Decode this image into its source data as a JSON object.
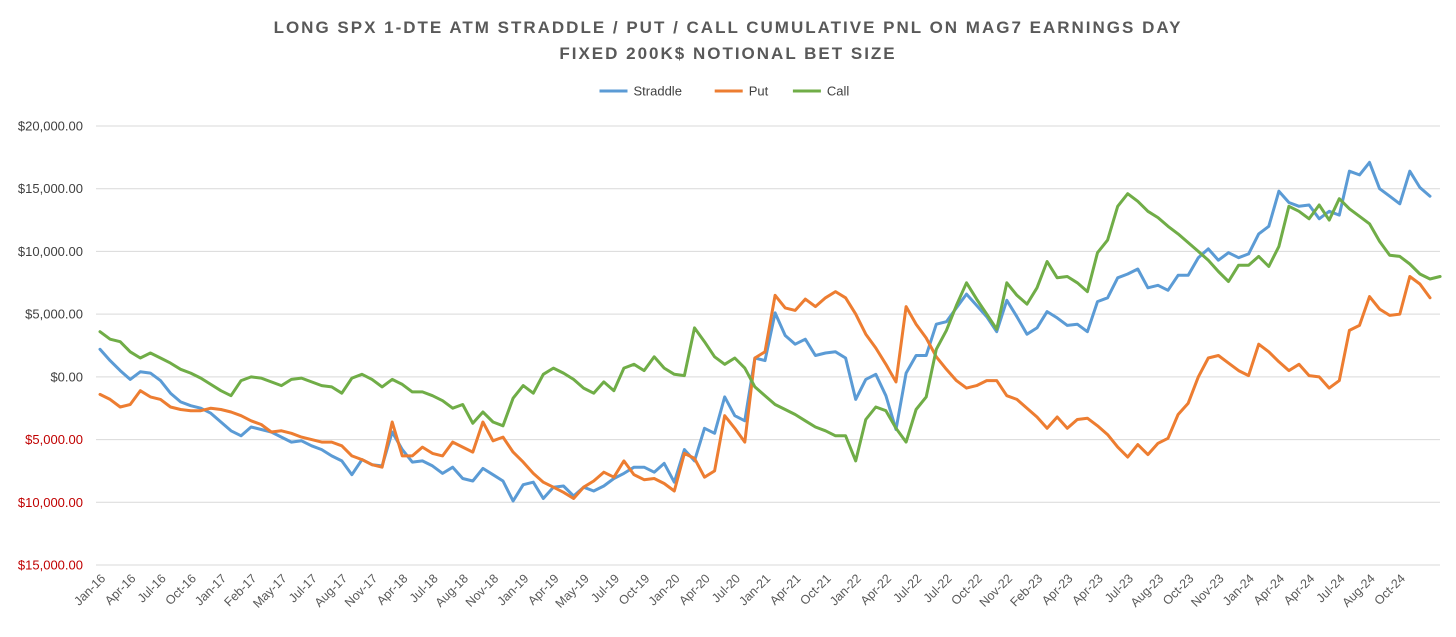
{
  "chart_data": {
    "type": "line",
    "title": "LONG SPX 1-DTE ATM STRADDLE / PUT / CALL CUMULATIVE PNL ON MAG7 EARNINGS DAY",
    "subtitle": "FIXED 200K$ NOTIONAL BET SIZE",
    "legend_position": "top-center",
    "grid": true,
    "ylim": [
      -15000,
      20000
    ],
    "yticks": [
      {
        "value": 20000,
        "label": "$20,000.00",
        "color": "#404040"
      },
      {
        "value": 15000,
        "label": "$15,000.00",
        "color": "#404040"
      },
      {
        "value": 10000,
        "label": "$10,000.00",
        "color": "#404040"
      },
      {
        "value": 5000,
        "label": "$5,000.00",
        "color": "#404040"
      },
      {
        "value": 0,
        "label": "$0.00",
        "color": "#404040"
      },
      {
        "value": -5000,
        "label": "$5,000.00",
        "color": "#c00000"
      },
      {
        "value": -10000,
        "label": "$10,000.00",
        "color": "#c00000"
      },
      {
        "value": -15000,
        "label": "$15,000.00",
        "color": "#c00000"
      }
    ],
    "xtick_labels": [
      {
        "index": 0,
        "label": "Jan-16"
      },
      {
        "index": 3,
        "label": "Apr-16"
      },
      {
        "index": 6,
        "label": "Jul-16"
      },
      {
        "index": 9,
        "label": "Oct-16"
      },
      {
        "index": 12,
        "label": "Jan-17"
      },
      {
        "index": 15,
        "label": "Feb-17"
      },
      {
        "index": 18,
        "label": "May-17"
      },
      {
        "index": 21,
        "label": "Jul-17"
      },
      {
        "index": 24,
        "label": "Aug-17"
      },
      {
        "index": 27,
        "label": "Nov-17"
      },
      {
        "index": 30,
        "label": "Apr-18"
      },
      {
        "index": 33,
        "label": "Jul-18"
      },
      {
        "index": 36,
        "label": "Aug-18"
      },
      {
        "index": 39,
        "label": "Nov-18"
      },
      {
        "index": 42,
        "label": "Jan-19"
      },
      {
        "index": 45,
        "label": "Apr-19"
      },
      {
        "index": 48,
        "label": "May-19"
      },
      {
        "index": 51,
        "label": "Jul-19"
      },
      {
        "index": 54,
        "label": "Oct-19"
      },
      {
        "index": 57,
        "label": "Jan-20"
      },
      {
        "index": 60,
        "label": "Apr-20"
      },
      {
        "index": 63,
        "label": "Jul-20"
      },
      {
        "index": 66,
        "label": "Jan-21"
      },
      {
        "index": 69,
        "label": "Apr-21"
      },
      {
        "index": 72,
        "label": "Oct-21"
      },
      {
        "index": 75,
        "label": "Jan-22"
      },
      {
        "index": 78,
        "label": "Apr-22"
      },
      {
        "index": 81,
        "label": "Jul-22"
      },
      {
        "index": 84,
        "label": "Jul-22"
      },
      {
        "index": 87,
        "label": "Oct-22"
      },
      {
        "index": 90,
        "label": "Nov-22"
      },
      {
        "index": 93,
        "label": "Feb-23"
      },
      {
        "index": 96,
        "label": "Apr-23"
      },
      {
        "index": 99,
        "label": "Apr-23"
      },
      {
        "index": 102,
        "label": "Jul-23"
      },
      {
        "index": 105,
        "label": "Aug-23"
      },
      {
        "index": 108,
        "label": "Oct-23"
      },
      {
        "index": 111,
        "label": "Nov-23"
      },
      {
        "index": 114,
        "label": "Jan-24"
      },
      {
        "index": 117,
        "label": "Apr-24"
      },
      {
        "index": 120,
        "label": "Apr-24"
      },
      {
        "index": 123,
        "label": "Jul-24"
      },
      {
        "index": 126,
        "label": "Aug-24"
      },
      {
        "index": 129,
        "label": "Oct-24"
      }
    ],
    "series": [
      {
        "name": "Straddle",
        "color": "#5b9bd5",
        "values": [
          2200,
          1300,
          500,
          -200,
          400,
          300,
          -300,
          -1300,
          -2000,
          -2300,
          -2500,
          -2900,
          -3600,
          -4300,
          -4700,
          -4000,
          -4200,
          -4400,
          -4800,
          -5200,
          -5100,
          -5500,
          -5800,
          -6300,
          -6700,
          -7800,
          -6600,
          -7000,
          -7100,
          -4400,
          -5800,
          -6800,
          -6700,
          -7100,
          -7700,
          -7200,
          -8100,
          -8300,
          -7300,
          -7800,
          -8300,
          -9900,
          -8600,
          -8400,
          -9700,
          -8800,
          -8700,
          -9500,
          -8800,
          -9100,
          -8700,
          -8100,
          -7700,
          -7200,
          -7200,
          -7600,
          -6900,
          -8400,
          -5800,
          -6700,
          -4100,
          -4500,
          -1600,
          -3100,
          -3500,
          1500,
          1300,
          5100,
          3300,
          2600,
          3000,
          1700,
          1900,
          2000,
          1500,
          -1800,
          -200,
          200,
          -1500,
          -4200,
          300,
          1700,
          1700,
          4200,
          4400,
          5500,
          6600,
          5700,
          4800,
          3600,
          6100,
          4800,
          3400,
          3900,
          5200,
          4700,
          4100,
          4200,
          3600,
          6000,
          6300,
          7900,
          8200,
          8600,
          7100,
          7300,
          6900,
          8100,
          8100,
          9500,
          10200,
          9300,
          9900,
          9500,
          9800,
          11400,
          12000,
          14800,
          13900,
          13600,
          13700,
          12600,
          13200,
          12900,
          16400,
          16100,
          17100,
          15000,
          14400,
          13800,
          16400,
          15100,
          14400
        ]
      },
      {
        "name": "Put",
        "color": "#ed7d31",
        "values": [
          -1400,
          -1800,
          -2400,
          -2200,
          -1100,
          -1600,
          -1800,
          -2400,
          -2600,
          -2700,
          -2700,
          -2500,
          -2600,
          -2800,
          -3100,
          -3500,
          -3800,
          -4400,
          -4300,
          -4500,
          -4800,
          -5000,
          -5200,
          -5200,
          -5500,
          -6300,
          -6600,
          -7000,
          -7200,
          -3600,
          -6300,
          -6300,
          -5600,
          -6100,
          -6300,
          -5200,
          -5600,
          -6000,
          -3600,
          -5100,
          -4800,
          -6000,
          -6800,
          -7700,
          -8400,
          -8800,
          -9200,
          -9700,
          -8800,
          -8300,
          -7600,
          -8000,
          -6700,
          -7800,
          -8200,
          -8100,
          -8500,
          -9100,
          -6100,
          -6500,
          -8000,
          -7500,
          -3100,
          -4100,
          -5200,
          1500,
          2000,
          6500,
          5500,
          5300,
          6200,
          5600,
          6300,
          6800,
          6300,
          5000,
          3400,
          2300,
          1000,
          -400,
          5600,
          4200,
          3100,
          1600,
          600,
          -300,
          -900,
          -700,
          -300,
          -300,
          -1500,
          -1800,
          -2500,
          -3200,
          -4100,
          -3200,
          -4100,
          -3400,
          -3300,
          -3900,
          -4600,
          -5600,
          -6400,
          -5400,
          -6200,
          -5300,
          -4900,
          -3000,
          -2100,
          0,
          1500,
          1700,
          1100,
          500,
          100,
          2600,
          2000,
          1200,
          500,
          1000,
          100,
          0,
          -900,
          -300,
          3700,
          4100,
          6400,
          5400,
          4900,
          5000,
          8000,
          7400,
          6300
        ]
      },
      {
        "name": "Call",
        "color": "#70ad47",
        "values": [
          3600,
          3000,
          2800,
          2000,
          1500,
          1900,
          1500,
          1100,
          600,
          300,
          -100,
          -600,
          -1100,
          -1500,
          -300,
          0,
          -100,
          -400,
          -700,
          -200,
          -100,
          -400,
          -700,
          -800,
          -1300,
          -100,
          200,
          -200,
          -800,
          -200,
          -600,
          -1200,
          -1200,
          -1500,
          -1900,
          -2500,
          -2200,
          -3700,
          -2800,
          -3600,
          -3900,
          -1700,
          -700,
          -1300,
          200,
          700,
          300,
          -200,
          -900,
          -1300,
          -400,
          -1100,
          700,
          1000,
          500,
          1600,
          700,
          200,
          100,
          3900,
          2800,
          1600,
          1000,
          1500,
          700,
          -800,
          -1500,
          -2200,
          -2600,
          -3000,
          -3500,
          -4000,
          -4300,
          -4700,
          -4700,
          -6700,
          -3400,
          -2400,
          -2700,
          -4100,
          -5200,
          -2600,
          -1600,
          2200,
          3700,
          5700,
          7500,
          6200,
          5000,
          3800,
          7500,
          6500,
          5800,
          7100,
          9200,
          7900,
          8000,
          7500,
          6800,
          9900,
          10900,
          13600,
          14600,
          14000,
          13200,
          12700,
          12000,
          11400,
          10700,
          10000,
          9300,
          8400,
          7600,
          8900,
          8900,
          9600,
          8800,
          10400,
          13600,
          13200,
          12600,
          13700,
          12500,
          14200,
          13400,
          12800,
          12200,
          10800,
          9700,
          9600,
          9000,
          8200,
          7800,
          8000
        ]
      }
    ]
  }
}
